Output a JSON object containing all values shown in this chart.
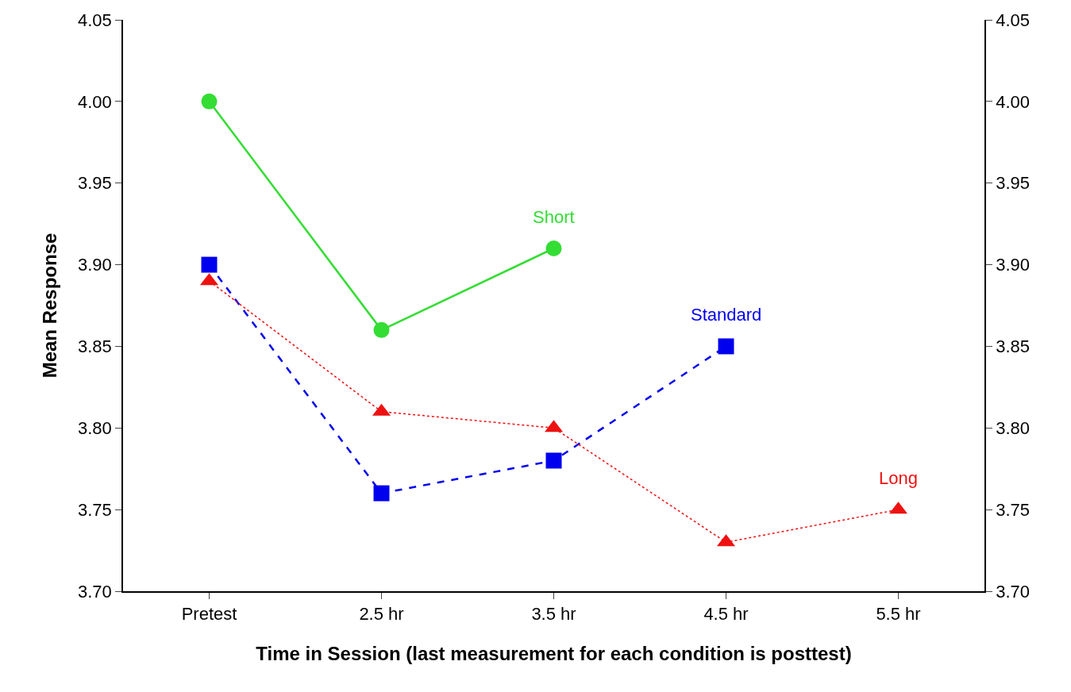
{
  "chart_data": {
    "type": "line",
    "xlabel": "Time in Session (last measurement for each condition is posttest)",
    "ylabel": "Mean Response",
    "categories": [
      "Pretest",
      "2.5 hr",
      "3.5 hr",
      "4.5 hr",
      "5.5 hr"
    ],
    "series": [
      {
        "name": "Short",
        "color": "#33dd33",
        "marker": "circle",
        "line_style": "solid",
        "values": [
          4.0,
          3.86,
          3.91,
          null,
          null
        ]
      },
      {
        "name": "Standard",
        "color": "#0000ee",
        "marker": "square",
        "line_style": "dashed",
        "values": [
          3.9,
          3.76,
          3.78,
          3.85,
          null
        ]
      },
      {
        "name": "Long",
        "color": "#ee1111",
        "marker": "triangle",
        "line_style": "dotted",
        "values": [
          3.89,
          3.81,
          3.8,
          3.73,
          3.75
        ]
      }
    ],
    "ylim": [
      3.7,
      4.05
    ],
    "yticks": [
      {
        "value": 3.7,
        "label": "3.70"
      },
      {
        "value": 3.75,
        "label": "3.75"
      },
      {
        "value": 3.8,
        "label": "3.80"
      },
      {
        "value": 3.85,
        "label": "3.85"
      },
      {
        "value": 3.9,
        "label": "3.90"
      },
      {
        "value": 3.95,
        "label": "3.95"
      },
      {
        "value": 4.0,
        "label": "4.00"
      },
      {
        "value": 4.05,
        "label": "4.05"
      }
    ],
    "y2lim": [
      3.7,
      4.05
    ],
    "y2ticks": [
      {
        "value": 3.7,
        "label": "3.70"
      },
      {
        "value": 3.75,
        "label": "3.75"
      },
      {
        "value": 3.8,
        "label": "3.80"
      },
      {
        "value": 3.85,
        "label": "3.85"
      },
      {
        "value": 3.9,
        "label": "3.90"
      },
      {
        "value": 3.95,
        "label": "3.95"
      },
      {
        "value": 4.0,
        "label": "4.00"
      },
      {
        "value": 4.05,
        "label": "4.05"
      }
    ],
    "grid": false,
    "legend": false
  }
}
